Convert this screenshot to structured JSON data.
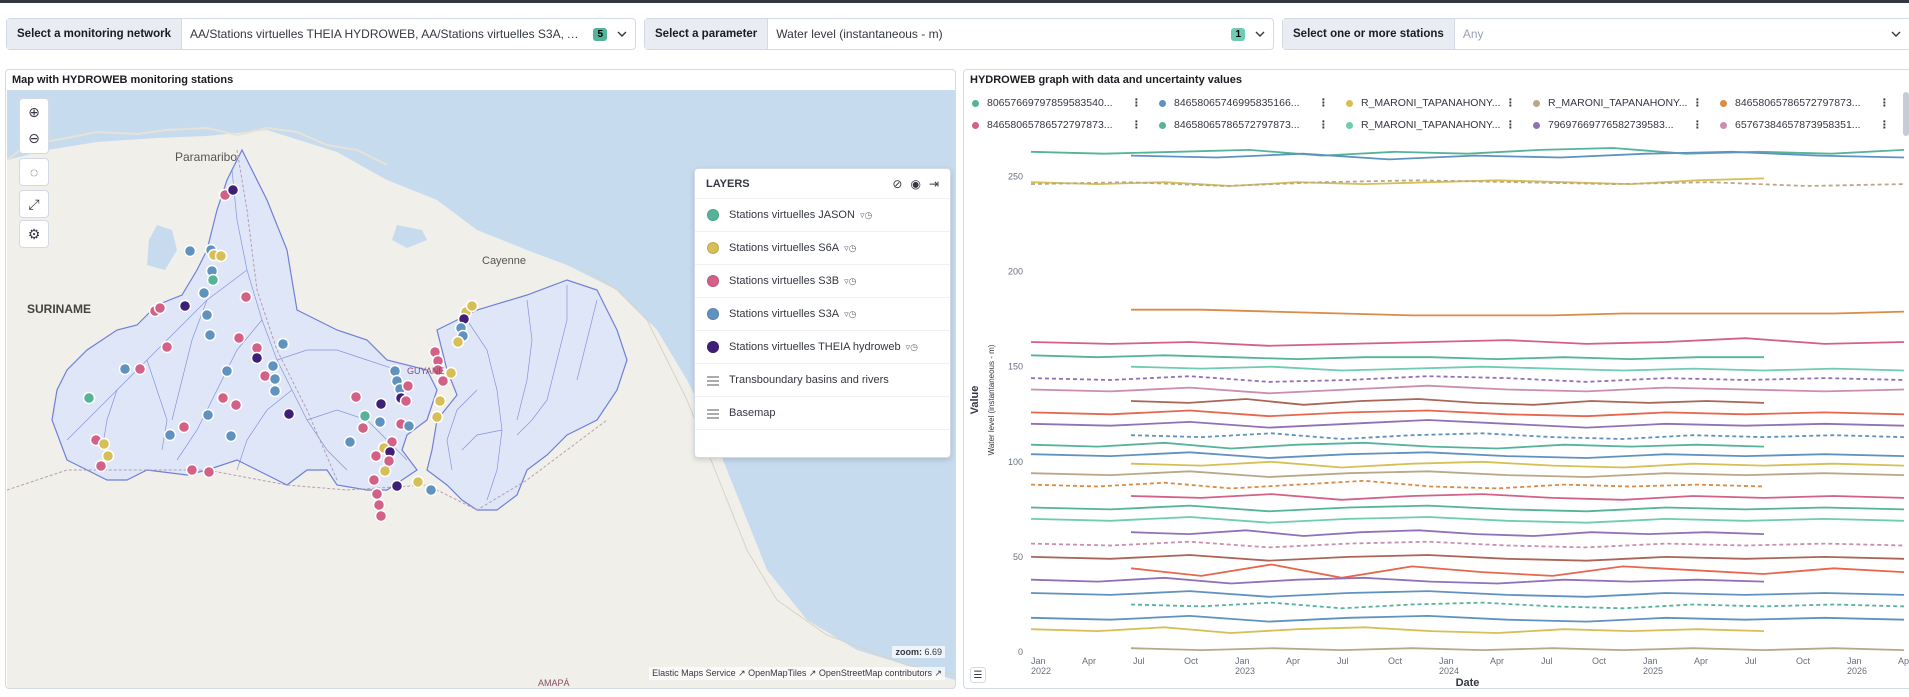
{
  "filters": {
    "network": {
      "label": "Select a monitoring network",
      "value": "AA/Stations virtuelles THEIA HYDROWEB, AA/Stations virtuelles S3A, AA/Stati...",
      "count": "5"
    },
    "parameter": {
      "label": "Select a parameter",
      "value": "Water level (instantaneous - m)",
      "count": "1"
    },
    "stations": {
      "label": "Select one or more stations",
      "placeholder": "Any"
    }
  },
  "map": {
    "title": "Map with HYDROWEB monitoring stations",
    "labels": {
      "paramaribo": "Paramaribo",
      "suriname": "SURINAME",
      "cayenne": "Cayenne",
      "guyane": "GUYANE",
      "amapa": "AMAPÁ"
    },
    "layers_title": "LAYERS",
    "layers": [
      {
        "label": "Stations virtuelles JASON",
        "color": "#54b399",
        "kind": "point"
      },
      {
        "label": "Stations virtuelles S6A",
        "color": "#d6bf57",
        "kind": "point"
      },
      {
        "label": "Stations virtuelles S3B",
        "color": "#d36086",
        "kind": "point"
      },
      {
        "label": "Stations virtuelles S3A",
        "color": "#6092c0",
        "kind": "point"
      },
      {
        "label": "Stations virtuelles THEIA hydroweb",
        "color": "#3f1e77",
        "kind": "point"
      },
      {
        "label": "Transboundary basins and rivers",
        "kind": "grid"
      },
      {
        "label": "Basemap",
        "kind": "grid"
      }
    ],
    "zoom_label": "zoom:",
    "zoom_value": "6.69",
    "attribution": {
      "ems": "Elastic Maps Service",
      "omt": "OpenMapTiles",
      "osm": "OpenStreetMap contributors"
    }
  },
  "graph": {
    "title": "HYDROWEB graph with data and uncertainty values",
    "legend": [
      {
        "label": "80657669797859583540...",
        "color": "#54b399"
      },
      {
        "label": "84658065746995835166...",
        "color": "#6092c0"
      },
      {
        "label": "R_MARONI_TAPANAHONY...",
        "color": "#d6bf57"
      },
      {
        "label": "R_MARONI_TAPANAHONY...",
        "color": "#b9a888"
      },
      {
        "label": "84658065786572797873...",
        "color": "#da8b45"
      },
      {
        "label": "84658065786572797873...",
        "color": "#d36086"
      },
      {
        "label": "84658065786572797873...",
        "color": "#54b399"
      },
      {
        "label": "R_MARONI_TAPANAHONY...",
        "color": "#6dccb1"
      },
      {
        "label": "79697669776582739583...",
        "color": "#9170b8"
      },
      {
        "label": "65767384657873958351...",
        "color": "#ca8eae"
      }
    ]
  },
  "chart_data": {
    "type": "line",
    "xlabel": "Date",
    "ylabel": "Value",
    "ysublabel": "Water level (instantaneous - m)",
    "ylim": [
      0,
      265
    ],
    "yticks": [
      0,
      50,
      100,
      150,
      200,
      250
    ],
    "xticks": [
      "Jan 2022",
      "Apr",
      "Jul",
      "Oct",
      "Jan 2023",
      "Apr",
      "Jul",
      "Oct",
      "Jan 2024",
      "Apr",
      "Jul",
      "Oct",
      "Jan 2025",
      "Apr",
      "Jul",
      "Oct",
      "Jan 2026",
      "Apr"
    ],
    "grid": false,
    "series": [
      {
        "values": [
          263,
          262,
          263,
          264,
          261,
          263,
          262,
          264,
          265,
          262,
          263,
          262,
          264
        ]
      },
      {
        "values": [
          261,
          260,
          262,
          259,
          261,
          260,
          262,
          263,
          261,
          260
        ]
      },
      {
        "values": [
          247,
          246,
          247,
          245,
          247,
          246,
          247,
          248,
          247,
          246,
          248,
          249
        ]
      },
      {
        "values": [
          246,
          247,
          245,
          247,
          248,
          247,
          246,
          247,
          245,
          246
        ]
      },
      {
        "values": [
          180,
          180,
          179,
          178,
          177,
          177,
          177,
          178,
          178,
          178,
          178,
          179
        ]
      },
      {
        "values": [
          163,
          162,
          163,
          161,
          162,
          163,
          164,
          162,
          163,
          165,
          162,
          163
        ]
      },
      {
        "values": [
          156,
          155,
          156,
          155,
          154,
          155,
          155,
          154,
          155,
          154,
          155,
          155
        ]
      },
      {
        "values": [
          150,
          149,
          150,
          148,
          149,
          150,
          149,
          148,
          149,
          148,
          149,
          148
        ]
      },
      {
        "values": [
          144,
          143,
          145,
          142,
          143,
          145,
          144,
          142,
          144,
          143,
          144,
          143
        ]
      },
      {
        "values": [
          138,
          137,
          139,
          136,
          138,
          140,
          138,
          137,
          139,
          138,
          137,
          138
        ]
      },
      {
        "values": [
          132,
          131,
          133,
          130,
          132,
          133,
          131,
          130,
          132,
          131,
          132,
          131
        ]
      },
      {
        "values": [
          126,
          125,
          127,
          124,
          126,
          127,
          125,
          124,
          126,
          125,
          126,
          125
        ]
      },
      {
        "values": [
          120,
          119,
          121,
          118,
          120,
          122,
          120,
          118,
          120,
          119,
          120,
          119
        ]
      },
      {
        "values": [
          114,
          113,
          115,
          112,
          114,
          115,
          113,
          112,
          114,
          113,
          114,
          113
        ]
      },
      {
        "values": [
          109,
          108,
          110,
          107,
          109,
          110,
          108,
          107,
          109,
          108,
          109,
          108
        ]
      },
      {
        "values": [
          104,
          103,
          105,
          102,
          104,
          105,
          103,
          102,
          104,
          103,
          104,
          103
        ]
      },
      {
        "values": [
          99,
          98,
          100,
          97,
          99,
          100,
          98,
          97,
          99,
          98,
          99,
          98
        ]
      },
      {
        "values": [
          94,
          93,
          95,
          92,
          94,
          95,
          93,
          92,
          94,
          93,
          94,
          93
        ]
      },
      {
        "values": [
          88,
          87,
          89,
          86,
          88,
          90,
          87,
          86,
          88,
          87,
          88,
          87
        ]
      },
      {
        "values": [
          82,
          81,
          83,
          80,
          82,
          83,
          81,
          80,
          82,
          81,
          82,
          81
        ]
      },
      {
        "values": [
          76,
          75,
          77,
          74,
          76,
          77,
          75,
          74,
          76,
          75,
          76,
          75
        ]
      },
      {
        "values": [
          70,
          69,
          71,
          68,
          70,
          71,
          69,
          68,
          70,
          69,
          70,
          69
        ]
      },
      {
        "values": [
          63,
          62,
          64,
          61,
          63,
          64,
          62,
          61,
          63,
          62,
          63,
          62
        ]
      },
      {
        "values": [
          57,
          56,
          58,
          55,
          57,
          58,
          56,
          55,
          57,
          56,
          57,
          56
        ]
      },
      {
        "values": [
          50,
          49,
          51,
          48,
          50,
          51,
          49,
          48,
          50,
          49,
          50,
          49
        ]
      },
      {
        "values": [
          44,
          40,
          46,
          39,
          45,
          42,
          40,
          45,
          43,
          41,
          44,
          42
        ]
      },
      {
        "values": [
          38,
          37,
          39,
          36,
          38,
          39,
          37,
          36,
          38,
          37,
          38,
          37
        ]
      },
      {
        "values": [
          31,
          30,
          32,
          29,
          31,
          32,
          30,
          29,
          31,
          30,
          31,
          30
        ]
      },
      {
        "values": [
          25,
          24,
          26,
          23,
          25,
          26,
          24,
          23,
          25,
          24,
          25,
          24
        ]
      },
      {
        "values": [
          18,
          17,
          19,
          16,
          18,
          19,
          17,
          16,
          18,
          17,
          18,
          17
        ]
      },
      {
        "values": [
          12,
          11,
          13,
          10,
          12,
          13,
          11,
          10,
          12,
          11,
          12,
          11
        ]
      },
      {
        "values": [
          2,
          1,
          2,
          1,
          2,
          1,
          2,
          1,
          2,
          1,
          2,
          1
        ]
      }
    ]
  }
}
